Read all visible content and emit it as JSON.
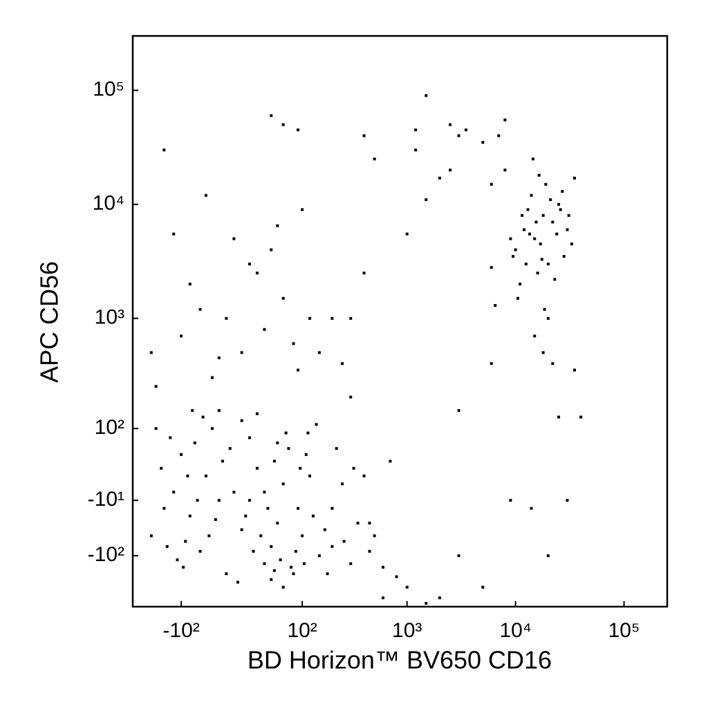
{
  "chart_data": {
    "type": "scatter",
    "x_label": "BD Horizon™ BV650 CD16",
    "y_label": "APC CD56",
    "xscale": "biexponential",
    "yscale": "biexponential",
    "color": "#000000",
    "xlim": [
      -300,
      250000
    ],
    "ylim": [
      -300,
      300000
    ],
    "xticks": [
      {
        "value": -100,
        "label": "-10²"
      },
      {
        "value": 100,
        "label": "10²"
      },
      {
        "value": 1000,
        "label": "10³"
      },
      {
        "value": 10000,
        "label": "10⁴"
      },
      {
        "value": 100000,
        "label": "10⁵"
      }
    ],
    "yticks": [
      {
        "value": -100,
        "label": "-10²"
      },
      {
        "value": -10,
        "label": "-10¹"
      },
      {
        "value": 100,
        "label": "10²"
      },
      {
        "value": 1000,
        "label": "10³"
      },
      {
        "value": 10000,
        "label": "10⁴"
      },
      {
        "value": 100000,
        "label": "10⁵"
      }
    ],
    "x": [
      -50,
      -30,
      0,
      20,
      40,
      60,
      -80,
      -100,
      10,
      30,
      -20,
      50,
      70,
      90,
      -60,
      -120,
      -40,
      100,
      120,
      -10,
      5,
      25,
      45,
      -70,
      -90,
      -150,
      150,
      80,
      -30,
      0,
      15,
      35,
      55,
      -45,
      -25,
      65,
      85,
      110,
      130,
      -110,
      -130,
      -160,
      170,
      200,
      250,
      300,
      350,
      400,
      -200,
      60,
      -5,
      40,
      20,
      -55,
      75,
      95,
      -15,
      30,
      -35,
      50,
      -65,
      10,
      180,
      220,
      -180,
      140,
      -140,
      260,
      320,
      450,
      500,
      600,
      700,
      800,
      -85,
      -95,
      105,
      115,
      -75,
      45,
      -40,
      0,
      30,
      -20,
      60,
      20,
      40,
      -10,
      80,
      120,
      -60,
      -80,
      150,
      200,
      -100,
      10,
      50,
      -30,
      90,
      -50,
      100,
      60,
      -150,
      90,
      40,
      -120,
      250,
      300,
      -200,
      -180,
      400,
      500,
      1000,
      1200,
      1500,
      1500,
      2000,
      2500,
      3000,
      3500,
      5000,
      6000,
      7000,
      8000,
      2500,
      1200,
      6000,
      6500,
      6000,
      8000,
      400,
      10000,
      12000,
      15000,
      18000,
      20000,
      25000,
      14000,
      11000,
      16000,
      22000,
      30000,
      13000,
      17000,
      19000,
      28000,
      9000,
      12500,
      24000,
      21000,
      15500,
      11500,
      26000,
      33000,
      10500,
      18500,
      23000,
      16500,
      14500,
      35000,
      20000,
      9500,
      27000,
      13500,
      17500,
      31000,
      15000,
      18000,
      22000,
      25000,
      30000,
      20000,
      14000,
      9000,
      5000,
      3000,
      2000,
      1500,
      600,
      1000,
      450,
      300,
      200,
      3000,
      35000,
      40000
    ],
    "values": [
      20,
      -10,
      -50,
      30,
      -80,
      10,
      -30,
      50,
      80,
      -120,
      -150,
      -40,
      60,
      -20,
      -90,
      0,
      100,
      -60,
      20,
      0,
      -30,
      -60,
      40,
      70,
      -70,
      -20,
      -100,
      -150,
      150,
      120,
      -90,
      -20,
      -110,
      -60,
      40,
      90,
      -90,
      50,
      -30,
      -110,
      80,
      30,
      -50,
      -80,
      10,
      -120,
      -40,
      20,
      -60,
      -200,
      -180,
      -170,
      140,
      130,
      -130,
      30,
      60,
      0,
      -35,
      70,
      -10,
      -10,
      -150,
      60,
      100,
      110,
      -80,
      -70,
      30,
      -90,
      -60,
      -130,
      40,
      -160,
      20,
      -130,
      -120,
      90,
      150,
      -140,
      300,
      500,
      800,
      1000,
      1500,
      2500,
      4000,
      5000,
      600,
      1000,
      1200,
      2000,
      500,
      1000,
      700,
      3000,
      6500,
      450,
      350,
      12000,
      9000,
      50000,
      30000,
      45000,
      60000,
      5500,
      400,
      1000,
      500,
      250,
      40000,
      25000,
      5500,
      30000,
      11000,
      90000,
      17000,
      20000,
      40000,
      45000,
      35000,
      15000,
      40000,
      20000,
      50000,
      45000,
      2800,
      1300,
      400,
      55000,
      2500,
      4000,
      6000,
      5000,
      8000,
      3000,
      10000,
      12000,
      2000,
      2500,
      7000,
      6000,
      9000,
      4500,
      15000,
      3500,
      5000,
      3000,
      5500,
      11000,
      7000,
      8000,
      9000,
      4500,
      1500,
      1200,
      2200,
      18000,
      25000,
      17000,
      1000,
      3500,
      13000,
      5500,
      3300,
      8000,
      700,
      500,
      400,
      130,
      -10,
      -100,
      -20,
      -10,
      -200,
      -100,
      -250,
      -280,
      -250,
      -200,
      -40,
      200,
      -20,
      150,
      350,
      130
    ]
  }
}
